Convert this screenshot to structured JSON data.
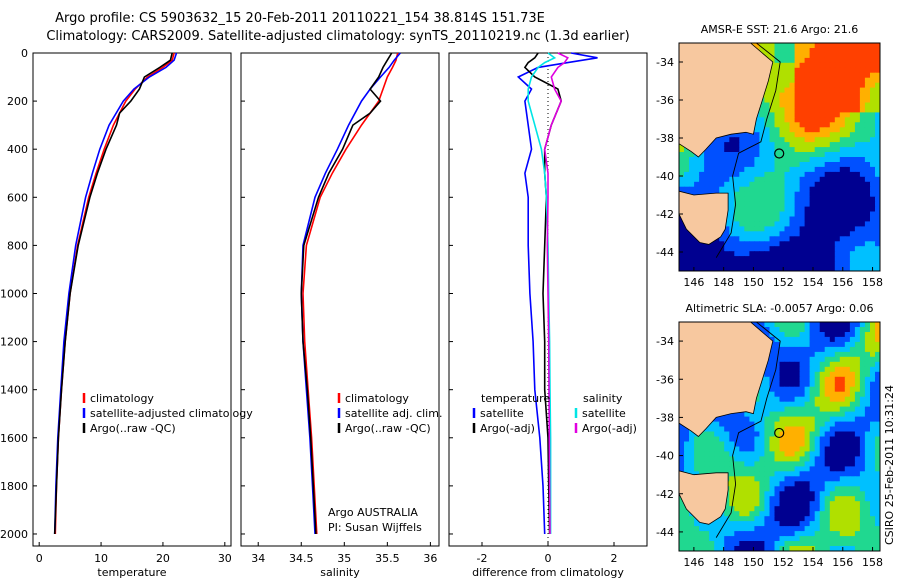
{
  "header": {
    "line1": "Argo profile: CS 5903632_15 20-Feb-2011 20110221_154 38.814S 151.73E",
    "line2": "Climatology: CARS2009. Satellite-adjusted climatology: synTS_20110219.nc (1.3d earlier)"
  },
  "colors": {
    "climatology": "#ff0000",
    "satellite": "#0000ff",
    "argo": "#000000",
    "sal_satellite": "#00e5e5",
    "sal_argo": "#e000e0",
    "land": "#f7c89f"
  },
  "chart_data": [
    {
      "type": "line",
      "title": "",
      "xlabel": "temperature",
      "ylabel": "",
      "xlim": [
        -1,
        31
      ],
      "ylim": [
        2050,
        0
      ],
      "xticks": [
        "0",
        "10",
        "20",
        "30"
      ],
      "yticks": [
        "0",
        "200",
        "400",
        "600",
        "800",
        "1000",
        "1200",
        "1400",
        "1600",
        "1800",
        "2000"
      ],
      "legend": [
        "climatology",
        "satellite-adjusted climatology",
        "Argo(..raw -QC)"
      ],
      "series": [
        {
          "name": "climatology",
          "depth": [
            0,
            30,
            60,
            100,
            150,
            200,
            300,
            400,
            500,
            600,
            800,
            1000,
            1200,
            1400,
            1600,
            1800,
            2000
          ],
          "values": [
            21.8,
            21.5,
            20,
            17.5,
            15.5,
            14,
            12,
            10.5,
            9.2,
            8,
            6.2,
            5,
            4.2,
            3.6,
            3.1,
            2.8,
            2.6
          ]
        },
        {
          "name": "satellite-adjusted climatology",
          "depth": [
            0,
            30,
            60,
            100,
            150,
            200,
            300,
            400,
            500,
            600,
            800,
            1000,
            1200,
            1400,
            1600,
            1800,
            2000
          ],
          "values": [
            22.2,
            21.8,
            20.5,
            17.8,
            15.3,
            13.6,
            11.3,
            9.8,
            8.6,
            7.5,
            5.9,
            4.8,
            4,
            3.5,
            3,
            2.7,
            2.5
          ]
        },
        {
          "name": "Argo(..raw -QC)",
          "depth": [
            0,
            30,
            60,
            100,
            150,
            200,
            250,
            300,
            400,
            500,
            600,
            800,
            1000,
            1200,
            1400,
            1600,
            1800,
            2000
          ],
          "values": [
            21.5,
            21.2,
            19.5,
            17,
            16.2,
            14.8,
            13,
            12.5,
            10.8,
            9.4,
            8.2,
            6.3,
            5,
            4.2,
            3.6,
            3.1,
            2.8,
            2.5
          ]
        }
      ]
    },
    {
      "type": "line",
      "xlabel": "salinity",
      "xlim": [
        33.8,
        36.1
      ],
      "ylim": [
        2050,
        0
      ],
      "xticks": [
        "34",
        "34.5",
        "35",
        "35.5",
        "36"
      ],
      "legend": [
        "climatology",
        "satellite adj. clim.",
        "Argo(..raw -QC)"
      ],
      "annotation": [
        "Argo AUSTRALIA",
        "PI: Susan Wijffels"
      ],
      "series": [
        {
          "name": "climatology",
          "depth": [
            0,
            30,
            60,
            100,
            150,
            200,
            300,
            400,
            500,
            600,
            800,
            1000,
            1200,
            1400,
            1600,
            1800,
            2000
          ],
          "values": [
            35.62,
            35.6,
            35.56,
            35.5,
            35.45,
            35.4,
            35.2,
            35.02,
            34.86,
            34.72,
            34.56,
            34.52,
            34.54,
            34.58,
            34.62,
            34.65,
            34.68
          ]
        },
        {
          "name": "satellite adj. clim.",
          "depth": [
            0,
            30,
            60,
            100,
            150,
            200,
            300,
            400,
            500,
            600,
            800,
            1000,
            1200,
            1400,
            1600,
            1800,
            2000
          ],
          "values": [
            35.65,
            35.58,
            35.52,
            35.42,
            35.3,
            35.2,
            35.05,
            34.92,
            34.78,
            34.66,
            34.52,
            34.5,
            34.52,
            34.56,
            34.6,
            34.63,
            34.66
          ]
        },
        {
          "name": "Argo(..raw -QC)",
          "depth": [
            0,
            30,
            60,
            100,
            150,
            200,
            250,
            300,
            400,
            500,
            600,
            800,
            1000,
            1200,
            1400,
            1600,
            1800,
            2000
          ],
          "values": [
            35.55,
            35.5,
            35.45,
            35.4,
            35.3,
            35.42,
            35.3,
            35.1,
            34.98,
            34.82,
            34.7,
            34.53,
            34.5,
            34.52,
            34.57,
            34.61,
            34.64,
            34.67
          ]
        }
      ]
    },
    {
      "type": "line",
      "xlabel": "difference from climatology",
      "xlim": [
        -3,
        3
      ],
      "ylim": [
        2050,
        0
      ],
      "xticks": [
        "-2",
        "0",
        "2"
      ],
      "legend_titles": [
        "temperature",
        "salinity"
      ],
      "legend": [
        "satellite",
        "Argo(-adj)",
        "satellite",
        "Argo(-adj)"
      ],
      "series": [
        {
          "name": "temperature satellite",
          "depth": [
            0,
            20,
            40,
            60,
            100,
            150,
            200,
            300,
            400,
            500,
            600,
            800,
            1000,
            1200,
            1400,
            1600,
            1800,
            2000
          ],
          "values": [
            0.7,
            1.5,
            0.6,
            -0.3,
            -0.9,
            -0.5,
            -0.7,
            -0.6,
            -0.5,
            -0.7,
            -0.6,
            -0.6,
            -0.55,
            -0.45,
            -0.4,
            -0.25,
            -0.15,
            -0.1
          ]
        },
        {
          "name": "temperature Argo(-adj)",
          "depth": [
            0,
            20,
            40,
            60,
            100,
            150,
            200,
            300,
            400,
            500,
            600,
            800,
            1000,
            1200,
            1400,
            1600,
            1800,
            2000
          ],
          "values": [
            -0.3,
            -0.4,
            -0.6,
            -0.7,
            -0.4,
            0.3,
            0.4,
            0.1,
            -0.1,
            -0.1,
            -0.05,
            -0.1,
            -0.15,
            -0.1,
            -0.1,
            0,
            0.02,
            0.05
          ]
        },
        {
          "name": "salinity satellite",
          "depth": [
            0,
            20,
            40,
            60,
            100,
            150,
            200,
            300,
            400,
            500,
            600,
            800,
            1000,
            1200,
            1400,
            1600,
            1800,
            2000
          ],
          "values": [
            0,
            0.2,
            -0.1,
            -0.3,
            -0.5,
            -0.6,
            -0.6,
            -0.4,
            -0.2,
            -0.1,
            -0.05,
            0,
            0.02,
            0.05,
            0.06,
            0.08,
            0.08,
            0.08
          ]
        },
        {
          "name": "salinity Argo(-adj)",
          "depth": [
            0,
            20,
            40,
            60,
            100,
            150,
            200,
            300,
            400,
            500,
            600,
            800,
            1000,
            1200,
            1400,
            1600,
            1800,
            2000
          ],
          "values": [
            0.3,
            0.6,
            0.5,
            0.3,
            0.1,
            0.2,
            0.4,
            0.1,
            -0.1,
            0,
            0,
            -0.02,
            0,
            0.02,
            0.03,
            0.04,
            0.05,
            0.06
          ]
        }
      ]
    },
    {
      "type": "heatmap",
      "title": "AMSR-E SST: 21.6 Argo: 21.6",
      "xticks": [
        "146",
        "148",
        "150",
        "152",
        "154",
        "156",
        "158"
      ],
      "yticks": [
        "-34",
        "-36",
        "-38",
        "-40",
        "-42",
        "-44"
      ],
      "xlim": [
        145,
        158.5
      ],
      "ylim": [
        -45,
        -33
      ]
    },
    {
      "type": "heatmap",
      "title": "Altimetric SLA: -0.0057 Argo: 0.06",
      "xticks": [
        "146",
        "148",
        "150",
        "152",
        "154",
        "156",
        "158"
      ],
      "yticks": [
        "-34",
        "-36",
        "-38",
        "-40",
        "-42",
        "-44"
      ],
      "xlim": [
        145,
        158.5
      ],
      "ylim": [
        -45,
        -33
      ]
    }
  ],
  "footer": {
    "stamp": "CSIRO 25-Feb-2011 10:31:24"
  }
}
